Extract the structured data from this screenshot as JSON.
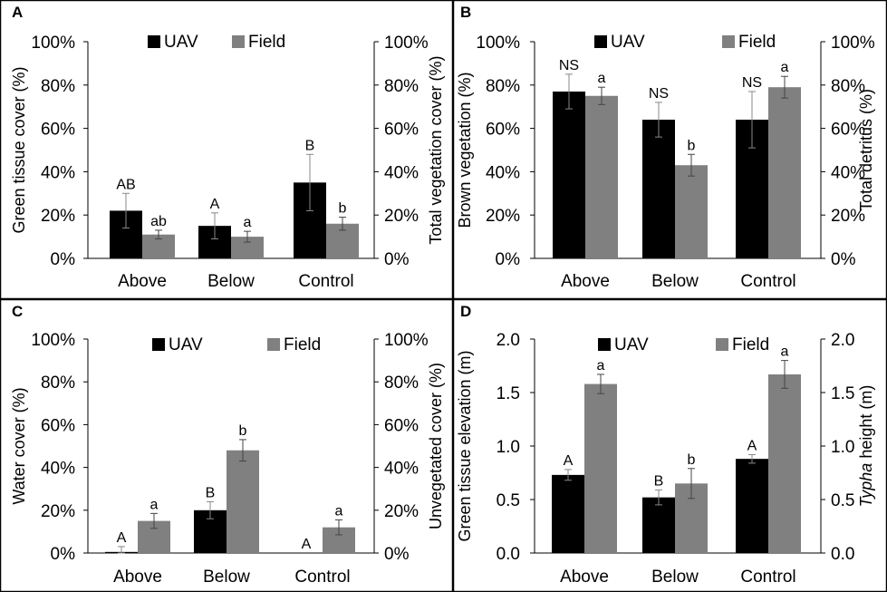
{
  "chart_data": [
    {
      "panel_label": "A",
      "type": "bar",
      "categories": [
        "Above",
        "Below",
        "Control"
      ],
      "legend": [
        "UAV",
        "Field"
      ],
      "colors": [
        "#000000",
        "#808080"
      ],
      "ylabel": "Green tissue cover (%)",
      "ylabel_right": "Total vegetation cover (%)",
      "ylim": [
        0,
        100
      ],
      "yticks": [
        "0%",
        "20%",
        "40%",
        "60%",
        "80%",
        "100%"
      ],
      "series": [
        {
          "name": "UAV",
          "values": [
            22,
            15,
            35
          ],
          "errors": [
            8,
            6,
            13
          ],
          "letters": [
            "AB",
            "A",
            "B"
          ]
        },
        {
          "name": "Field",
          "values": [
            11,
            10,
            16
          ],
          "errors": [
            2,
            2.5,
            3
          ],
          "letters": [
            "ab",
            "a",
            "b"
          ]
        }
      ]
    },
    {
      "panel_label": "B",
      "type": "bar",
      "categories": [
        "Above",
        "Below",
        "Control"
      ],
      "legend": [
        "UAV",
        "Field"
      ],
      "colors": [
        "#000000",
        "#808080"
      ],
      "ylabel": "Brown vegetation (%)",
      "ylabel_right": "Total detritus (%)",
      "ylim": [
        0,
        100
      ],
      "yticks": [
        "0%",
        "20%",
        "40%",
        "60%",
        "80%",
        "100%"
      ],
      "series": [
        {
          "name": "UAV",
          "values": [
            77,
            64,
            64
          ],
          "errors": [
            8,
            8,
            13
          ],
          "letters": [
            "NS",
            "NS",
            "NS"
          ]
        },
        {
          "name": "Field",
          "values": [
            75,
            43,
            79
          ],
          "errors": [
            4,
            5,
            5
          ],
          "letters": [
            "a",
            "b",
            "a"
          ]
        }
      ]
    },
    {
      "panel_label": "C",
      "type": "bar",
      "categories": [
        "Above",
        "Below",
        "Control"
      ],
      "legend": [
        "UAV",
        "Field"
      ],
      "colors": [
        "#000000",
        "#808080"
      ],
      "ylabel": "Water cover (%)",
      "ylabel_right": "Unvegetated cover (%)",
      "ylim": [
        0,
        100
      ],
      "yticks": [
        "0%",
        "20%",
        "40%",
        "60%",
        "80%",
        "100%"
      ],
      "series": [
        {
          "name": "UAV",
          "values": [
            0.5,
            20,
            0
          ],
          "errors": [
            2.5,
            4,
            0
          ],
          "letters": [
            "A",
            "B",
            "A"
          ]
        },
        {
          "name": "Field",
          "values": [
            15,
            48,
            12
          ],
          "errors": [
            3.5,
            5,
            3.5
          ],
          "letters": [
            "a",
            "b",
            "a"
          ]
        }
      ]
    },
    {
      "panel_label": "D",
      "type": "bar",
      "categories": [
        "Above",
        "Below",
        "Control"
      ],
      "legend": [
        "UAV",
        "Field"
      ],
      "colors": [
        "#000000",
        "#808080"
      ],
      "ylabel": "Green tissue elevation (m)",
      "ylabel_right_prefix": "",
      "ylabel_right_italic": "Typha",
      "ylabel_right_suffix": " height (m)",
      "ylim": [
        0,
        2
      ],
      "yticks": [
        "0.0",
        "0.5",
        "1.0",
        "1.5",
        "2.0"
      ],
      "series": [
        {
          "name": "UAV",
          "values": [
            0.73,
            0.52,
            0.88
          ],
          "errors": [
            0.05,
            0.07,
            0.04
          ],
          "letters": [
            "A",
            "B",
            "A"
          ]
        },
        {
          "name": "Field",
          "values": [
            1.58,
            0.65,
            1.67
          ],
          "errors": [
            0.09,
            0.14,
            0.13
          ],
          "letters": [
            "a",
            "b",
            "a"
          ]
        }
      ]
    }
  ]
}
